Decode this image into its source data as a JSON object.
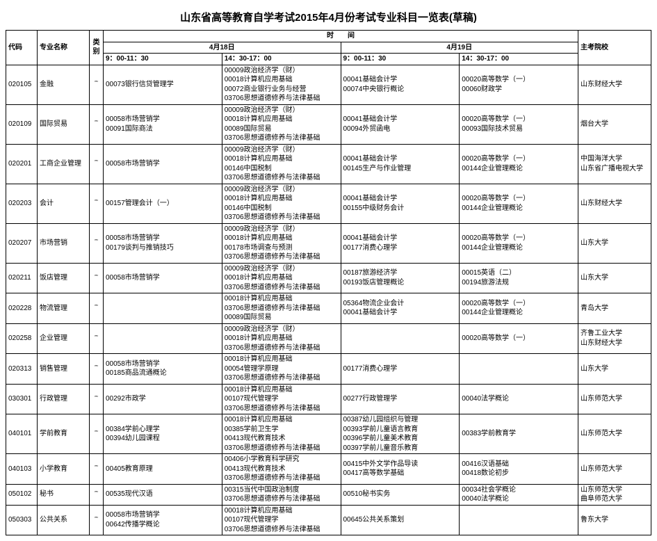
{
  "title": "山东省高等教育自学考试2015年4月份考试专业科目一览表(草稿)",
  "headers": {
    "code": "代码",
    "name": "专业名称",
    "type": "类别",
    "time": "时　　间",
    "day1": "4月18日",
    "day2": "4月19日",
    "slot_am": "9：00-11：30",
    "slot_pm": "14：30-17：00",
    "school": "主考院校"
  },
  "type_glyph": "῭",
  "rows": [
    {
      "code": "020105",
      "name": "金融",
      "d1am": "00073银行信贷管理学",
      "d1pm": "00009政治经济学（财）\n00018计算机应用基础\n00072商业银行业务与经营\n03706思想道德修养与法律基础",
      "d2am": "00041基础会计学\n00074中央银行概论",
      "d2pm": "00020高等数学（一）\n00060财政学",
      "school": "山东财经大学"
    },
    {
      "code": "020109",
      "name": "国际贸易",
      "d1am": "00058市场营销学\n00091国际商法",
      "d1pm": "00009政治经济学（财）\n00018计算机应用基础\n00089国际贸易\n03706思想道德修养与法律基础",
      "d2am": "00041基础会计学\n00094外贸函电",
      "d2pm": "00020高等数学（一）\n00093国际技术贸易",
      "school": "烟台大学"
    },
    {
      "code": "020201",
      "name": "工商企业管理",
      "d1am": "00058市场营销学",
      "d1pm": "00009政治经济学（财）\n00018计算机应用基础\n00146中国税制\n03706思想道德修养与法律基础",
      "d2am": "00041基础会计学\n00145生产与作业管理",
      "d2pm": "00020高等数学（一）\n00144企业管理概论",
      "school": "中国海洋大学\n山东省广播电视大学"
    },
    {
      "code": "020203",
      "name": "会计",
      "d1am": "00157管理会计（一）",
      "d1pm": "00009政治经济学（财）\n00018计算机应用基础\n00146中国税制\n03706思想道德修养与法律基础",
      "d2am": "00041基础会计学\n00155中级财务会计",
      "d2pm": "00020高等数学（一）\n00144企业管理概论",
      "school": "山东财经大学"
    },
    {
      "code": "020207",
      "name": "市场营销",
      "d1am": "00058市场营销学\n00179谈判与推销技巧",
      "d1pm": "00009政治经济学（财）\n00018计算机应用基础\n00178市场调查与预测\n03706思想道德修养与法律基础",
      "d2am": "00041基础会计学\n00177消费心理学",
      "d2pm": "00020高等数学（一）\n00144企业管理概论",
      "school": "山东大学"
    },
    {
      "code": "020211",
      "name": "饭店管理",
      "d1am": "00058市场营销学",
      "d1pm": "00009政治经济学（财）\n00018计算机应用基础\n03706思想道德修养与法律基础",
      "d2am": "00187旅游经济学\n00193饭店管理概论",
      "d2pm": "00015英语（二）\n00194旅游法规",
      "school": "山东大学"
    },
    {
      "code": "020228",
      "name": "物流管理",
      "d1am": "",
      "d1pm": "00018计算机应用基础\n03706思想道德修养与法律基础\n00089国际贸易",
      "d2am": "05364物流企业会计\n00041基础会计学",
      "d2pm": "00020高等数学（一）\n00144企业管理概论",
      "school": "青岛大学"
    },
    {
      "code": "020258",
      "name": "企业管理",
      "d1am": "",
      "d1pm": "00009政治经济学（财）\n00018计算机应用基础\n03706思想道德修养与法律基础",
      "d2am": "",
      "d2pm": "00020高等数学（一）",
      "school": "齐鲁工业大学\n山东财经大学"
    },
    {
      "code": "020313",
      "name": "销售管理",
      "d1am": "00058市场营销学\n00185商品流通概论",
      "d1pm": "00018计算机应用基础\n00054管理学原理\n03706思想道德修养与法律基础",
      "d2am": "00177消费心理学",
      "d2pm": "",
      "school": "山东大学"
    },
    {
      "code": "030301",
      "name": "行政管理",
      "d1am": "00292市政学",
      "d1pm": "00018计算机应用基础\n00107现代管理学\n03706思想道德修养与法律基础",
      "d2am": "00277行政管理学",
      "d2pm": "00040法学概论",
      "school": "山东师范大学"
    },
    {
      "code": "040101",
      "name": "学前教育",
      "d1am": "00384学前心理学\n00394幼儿园课程",
      "d1pm": "00018计算机应用基础\n00385学前卫生学\n00413现代教育技术\n03706思想道德修养与法律基础",
      "d2am": "00387幼儿园组织与管理\n00393学前儿童语言教育\n00396学前儿童美术教育\n00397学前儿童音乐教育",
      "d2pm": "00383学前教育学",
      "school": "山东师范大学"
    },
    {
      "code": "040103",
      "name": "小学教育",
      "d1am": "00405教育原理",
      "d1pm": "00406小学教育科学研究\n00413现代教育技术\n03706思想道德修养与法律基础",
      "d2am": "00415中外文学作品导读\n00417高等数学基础",
      "d2pm": "00416汉语基础\n00418数论初步",
      "school": "山东师范大学"
    },
    {
      "code": "050102",
      "name": "秘书",
      "d1am": "00535现代汉语",
      "d1pm": "00315当代中国政治制度\n03706思想道德修养与法律基础",
      "d2am": "00510秘书实务",
      "d2pm": "00034社会学概论\n00040法学概论",
      "school": "山东师范大学\n曲阜师范大学"
    },
    {
      "code": "050303",
      "name": "公共关系",
      "d1am": "00058市场营销学\n00642传播学概论",
      "d1pm": "00018计算机应用基础\n00107现代管理学\n03706思想道德修养与法律基础",
      "d2am": "00645公共关系策划",
      "d2pm": "",
      "school": "鲁东大学"
    }
  ]
}
